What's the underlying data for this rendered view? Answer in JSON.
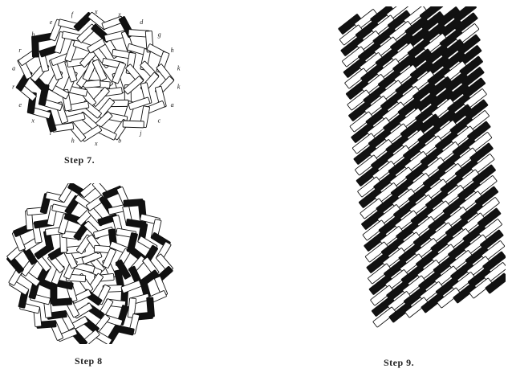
{
  "figures": {
    "step7": {
      "caption": "Step 7.",
      "letters": [
        "x",
        "x",
        "d",
        "g",
        "h",
        "k",
        "k",
        "a",
        "c",
        "j",
        "b",
        "x",
        "h",
        "l",
        "x",
        "e",
        "r",
        "a",
        "r",
        "b",
        "e",
        "f"
      ]
    },
    "step8": {
      "caption": "Step 8"
    },
    "step9": {
      "caption": "Step 9."
    }
  },
  "colors": {
    "ink": "#111111",
    "paper": "#ffffff"
  }
}
